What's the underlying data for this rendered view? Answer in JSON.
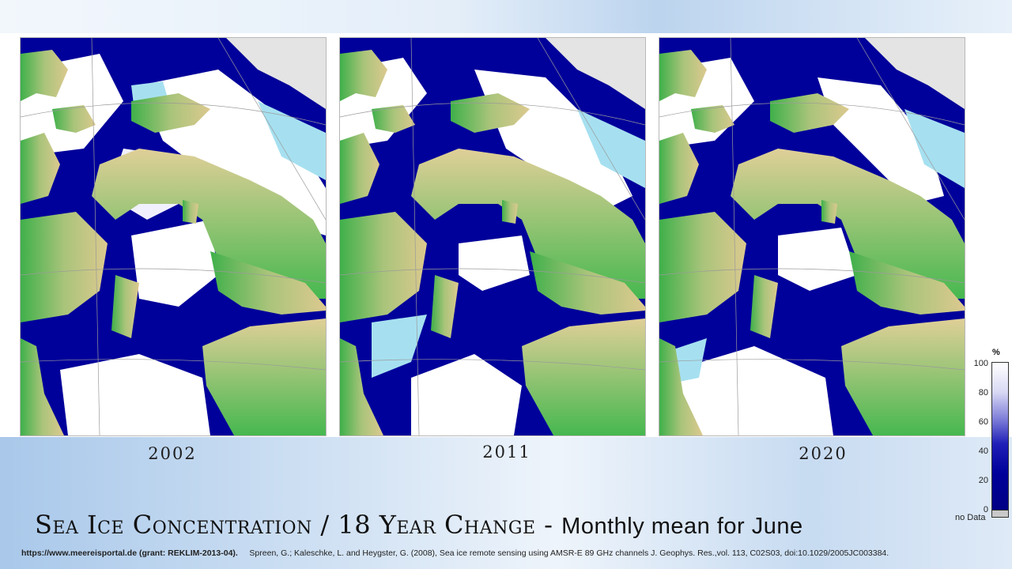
{
  "title": {
    "main": "Sea Ice Concentration / 18 Year Change",
    "separator": "-",
    "sub": "Monthly mean for June"
  },
  "panels": [
    {
      "year": "2002",
      "ice_extent": "high"
    },
    {
      "year": "2011",
      "ice_extent": "low"
    },
    {
      "year": "2020",
      "ice_extent": "medium"
    }
  ],
  "legend": {
    "unit": "%",
    "ticks": [
      "100",
      "80",
      "60",
      "40",
      "20",
      "0"
    ],
    "no_data_label": "no Data",
    "color_high": "#ffffff",
    "color_low": "#00009a",
    "no_data_color": "#c9c9c9"
  },
  "credits": {
    "source": "https://www.meereisportal.de (grant: REKLIM-2013-04).",
    "citation": "Spreen, G.; Kaleschke, L. and Heygster, G. (2008), Sea ice remote sensing using AMSR-E 89 GHz channels J. Geophys. Res.,vol. 113, C02S03, doi:10.1029/2005JC003384."
  },
  "map_colors": {
    "land_low": "#3cb44b",
    "land_high": "#d8c48a",
    "ice_full": "#ffffff",
    "water_open": "#00009a",
    "fast_ice": "#a6e0f0"
  }
}
